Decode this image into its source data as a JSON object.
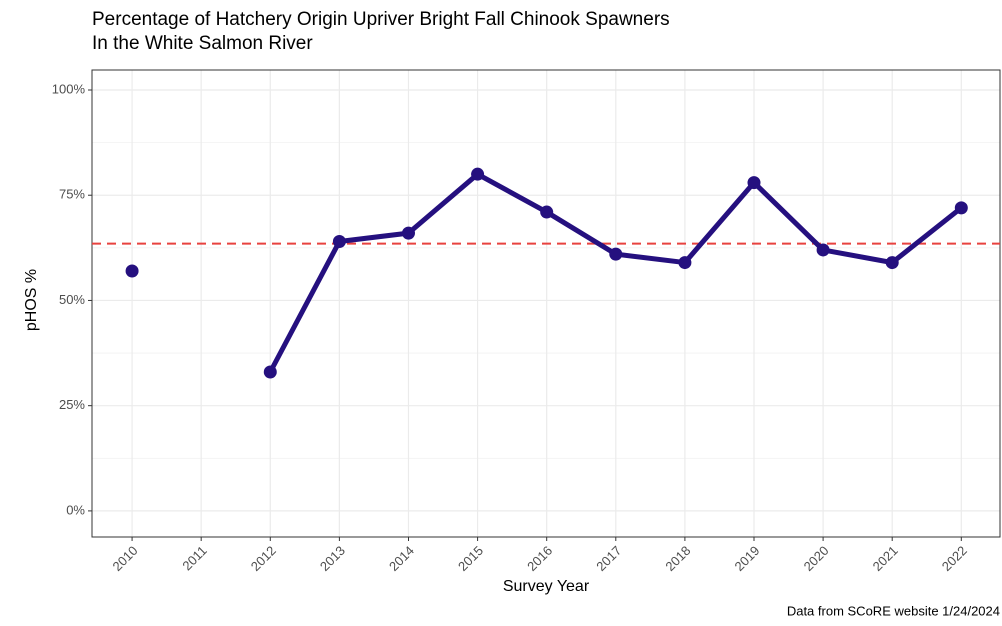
{
  "chart_data": {
    "type": "line",
    "title": [
      "Percentage of Hatchery Origin Upriver Bright Fall Chinook Spawners",
      "In the White Salmon River"
    ],
    "x_label": "Survey Year",
    "y_label": "pHOS %",
    "caption": "Data from SCoRE website 1/24/2024",
    "x": [
      2010,
      2011,
      2012,
      2013,
      2014,
      2015,
      2016,
      2017,
      2018,
      2019,
      2020,
      2021,
      2022
    ],
    "series": [
      {
        "color": "#25107f",
        "values": [
          57,
          null,
          33,
          64,
          66,
          80,
          71,
          61,
          59,
          78,
          62,
          59,
          72
        ]
      }
    ],
    "reference_line": {
      "value": 63.5,
      "color": "#e8423f",
      "style": "dashed"
    },
    "xlim": [
      2009.42,
      2022.56
    ],
    "xticks": [
      2010,
      2011,
      2012,
      2013,
      2014,
      2015,
      2016,
      2017,
      2018,
      2019,
      2020,
      2021,
      2022
    ],
    "ylim": [
      -6.2,
      104.75
    ],
    "yticks": [
      {
        "value": 0,
        "label": "0%"
      },
      {
        "value": 25,
        "label": "25%"
      },
      {
        "value": 50,
        "label": "50%"
      },
      {
        "value": 75,
        "label": "75%"
      },
      {
        "value": 100,
        "label": "100%"
      }
    ],
    "y_minor_grid": [
      12.5,
      37.5,
      62.5,
      87.5
    ],
    "grid": true
  }
}
